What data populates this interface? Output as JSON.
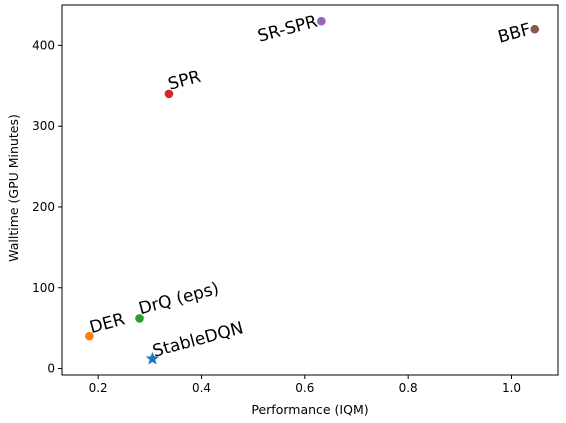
{
  "chart_data": {
    "type": "scatter",
    "title": "",
    "xlabel": "Performance (IQM)",
    "ylabel": "Walltime (GPU Minutes)",
    "xlim": [
      0.13,
      1.09
    ],
    "ylim": [
      -8,
      450
    ],
    "x_ticks": [
      0.2,
      0.4,
      0.6,
      0.8,
      1.0
    ],
    "y_ticks": [
      0,
      100,
      200,
      300,
      400
    ],
    "x_tick_labels": [
      "0.2",
      "0.4",
      "0.6",
      "0.8",
      "1.0"
    ],
    "y_tick_labels": [
      "0",
      "100",
      "200",
      "300",
      "400"
    ],
    "grid": false,
    "legend": "none",
    "points": [
      {
        "label": "DER",
        "x": 0.183,
        "y": 40,
        "color": "#ff7f0e",
        "marker": "circle"
      },
      {
        "label": "DrQ (eps)",
        "x": 0.28,
        "y": 62,
        "color": "#2ca02c",
        "marker": "circle"
      },
      {
        "label": "StableDQN",
        "x": 0.305,
        "y": 12,
        "color": "#1f77b4",
        "marker": "star"
      },
      {
        "label": "SPR",
        "x": 0.337,
        "y": 340,
        "color": "#d62728",
        "marker": "circle"
      },
      {
        "label": "SR-SPR",
        "x": 0.632,
        "y": 430,
        "color": "#9467bd",
        "marker": "circle"
      },
      {
        "label": "BBF",
        "x": 1.045,
        "y": 420,
        "color": "#8c564b",
        "marker": "circle"
      }
    ]
  }
}
